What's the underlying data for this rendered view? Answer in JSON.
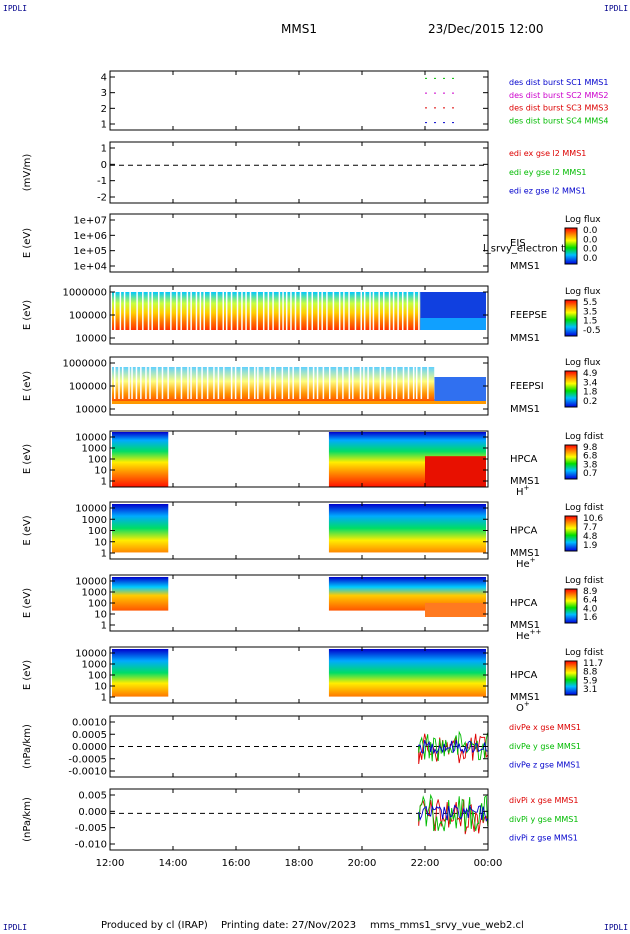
{
  "corner_label": "IPDLI",
  "header": {
    "spacecraft": "MMS1",
    "datetime": "23/Dec/2015 12:00"
  },
  "footer": {
    "produced_by": "Produced by cl (IRAP)",
    "printing_date": "Printing date: 27/Nov/2023",
    "filename": "mms_mms1_srvy_vue_web2.cl"
  },
  "chart_data": {
    "type": "stacked_timeseries",
    "x_axis": {
      "ticks": [
        "12:00",
        "14:00",
        "16:00",
        "18:00",
        "20:00",
        "22:00",
        "00:00"
      ],
      "range_hours": [
        12,
        24
      ]
    },
    "panels": [
      {
        "id": "burst",
        "type": "line",
        "ylabel": "",
        "yticks": [
          "4",
          "3",
          "2",
          "1"
        ],
        "ylim": [
          0.5,
          4.5
        ],
        "series": [
          {
            "name": "des dist burst SC1 MMS1",
            "color": "#0000cc",
            "level": 1
          },
          {
            "name": "des dist burst SC2 MMS2",
            "color": "#cc00cc",
            "level": 3
          },
          {
            "name": "des dist burst SC3 MMS3",
            "color": "#dd0000",
            "level": 2
          },
          {
            "name": "des dist burst SC4 MMS4",
            "color": "#00bb00",
            "level": 4
          }
        ],
        "burst_interval_hours": [
          22.0,
          23.0
        ]
      },
      {
        "id": "edi",
        "type": "line",
        "ylabel": "(mV/m)",
        "yticks": [
          "1",
          "0",
          "-1",
          "-2"
        ],
        "ylim": [
          -2.6,
          1.6
        ],
        "zero_line": true,
        "series": [
          {
            "name": "edi ex gse l2 MMS1",
            "color": "#dd0000"
          },
          {
            "name": "edi ey gse l2 MMS1",
            "color": "#00bb00"
          },
          {
            "name": "edi ez gse l2 MMS1",
            "color": "#0000cc"
          }
        ]
      },
      {
        "id": "eis",
        "type": "heatmap",
        "ylabel": "E (eV)",
        "yticks": [
          "1e+07",
          "1e+06",
          "1e+05",
          "1e+04"
        ],
        "instrument": "EIS",
        "instrument_sub": "MMS1",
        "overlay_text": "l_srvy_electron to",
        "colorbar": {
          "title": "Log flux",
          "ticks": [
            "0.0",
            "0.0",
            "0.0",
            "0.0"
          ]
        }
      },
      {
        "id": "feepse",
        "type": "heatmap",
        "ylabel": "E (eV)",
        "yticks": [
          "1000000",
          "100000",
          "10000"
        ],
        "instrument": "FEEPSE",
        "instrument_sub": "MMS1",
        "colorbar": {
          "title": "Log flux",
          "ticks": [
            "5.5",
            "3.5",
            "1.5",
            "-0.5"
          ]
        }
      },
      {
        "id": "feepsi",
        "type": "heatmap",
        "ylabel": "E (eV)",
        "yticks": [
          "1000000",
          "100000",
          "10000"
        ],
        "instrument": "FEEPSI",
        "instrument_sub": "MMS1",
        "colorbar": {
          "title": "Log flux",
          "ticks": [
            "4.9",
            "3.4",
            "1.8",
            "0.2"
          ]
        }
      },
      {
        "id": "hpca_h",
        "type": "heatmap",
        "ylabel": "E (eV)",
        "yticks": [
          "10000",
          "1000",
          "100",
          "10",
          "1"
        ],
        "instrument": "HPCA",
        "instrument_sub": "MMS1",
        "species": "H",
        "species_sup": "+",
        "colorbar": {
          "title": "Log fdist",
          "ticks": [
            "9.8",
            "6.8",
            "3.8",
            "0.7"
          ]
        }
      },
      {
        "id": "hpca_he",
        "type": "heatmap",
        "ylabel": "E (eV)",
        "yticks": [
          "10000",
          "1000",
          "100",
          "10",
          "1"
        ],
        "instrument": "HPCA",
        "instrument_sub": "MMS1",
        "species": "He",
        "species_sup": "+",
        "colorbar": {
          "title": "Log fdist",
          "ticks": [
            "10.6",
            "7.7",
            "4.8",
            "1.9"
          ]
        }
      },
      {
        "id": "hpca_he2",
        "type": "heatmap",
        "ylabel": "E (eV)",
        "yticks": [
          "10000",
          "1000",
          "100",
          "10",
          "1"
        ],
        "instrument": "HPCA",
        "instrument_sub": "MMS1",
        "species": "He",
        "species_sup": "++",
        "colorbar": {
          "title": "Log fdist",
          "ticks": [
            "8.9",
            "6.4",
            "4.0",
            "1.6"
          ]
        }
      },
      {
        "id": "hpca_o",
        "type": "heatmap",
        "ylabel": "E (eV)",
        "yticks": [
          "10000",
          "1000",
          "100",
          "10",
          "1"
        ],
        "instrument": "HPCA",
        "instrument_sub": "MMS1",
        "species": "O",
        "species_sup": "+",
        "colorbar": {
          "title": "Log fdist",
          "ticks": [
            "11.7",
            "8.8",
            "5.9",
            "3.1"
          ]
        }
      },
      {
        "id": "divpe",
        "type": "line",
        "ylabel": "(nPa/km)",
        "yticks": [
          "0.0010",
          "0.0005",
          "0.0000",
          "-0.0005",
          "-0.0010"
        ],
        "ylim": [
          -0.0013,
          0.0013
        ],
        "zero_line": true,
        "series": [
          {
            "name": "divPe x gse MMS1",
            "color": "#dd0000"
          },
          {
            "name": "divPe y gse MMS1",
            "color": "#00bb00"
          },
          {
            "name": "divPe z gse MMS1",
            "color": "#0000cc"
          }
        ],
        "active_interval_hours": [
          21.8,
          24.0
        ]
      },
      {
        "id": "divpi",
        "type": "line",
        "ylabel": "(nPa/km)",
        "yticks": [
          "0.005",
          "0.000",
          "-0.005",
          "-0.010"
        ],
        "ylim": [
          -0.012,
          0.008
        ],
        "zero_line": true,
        "series": [
          {
            "name": "divPi x gse MMS1",
            "color": "#dd0000"
          },
          {
            "name": "divPi y gse MMS1",
            "color": "#00bb00"
          },
          {
            "name": "divPi z gse MMS1",
            "color": "#0000cc"
          }
        ],
        "active_interval_hours": [
          21.8,
          24.0
        ]
      }
    ]
  }
}
